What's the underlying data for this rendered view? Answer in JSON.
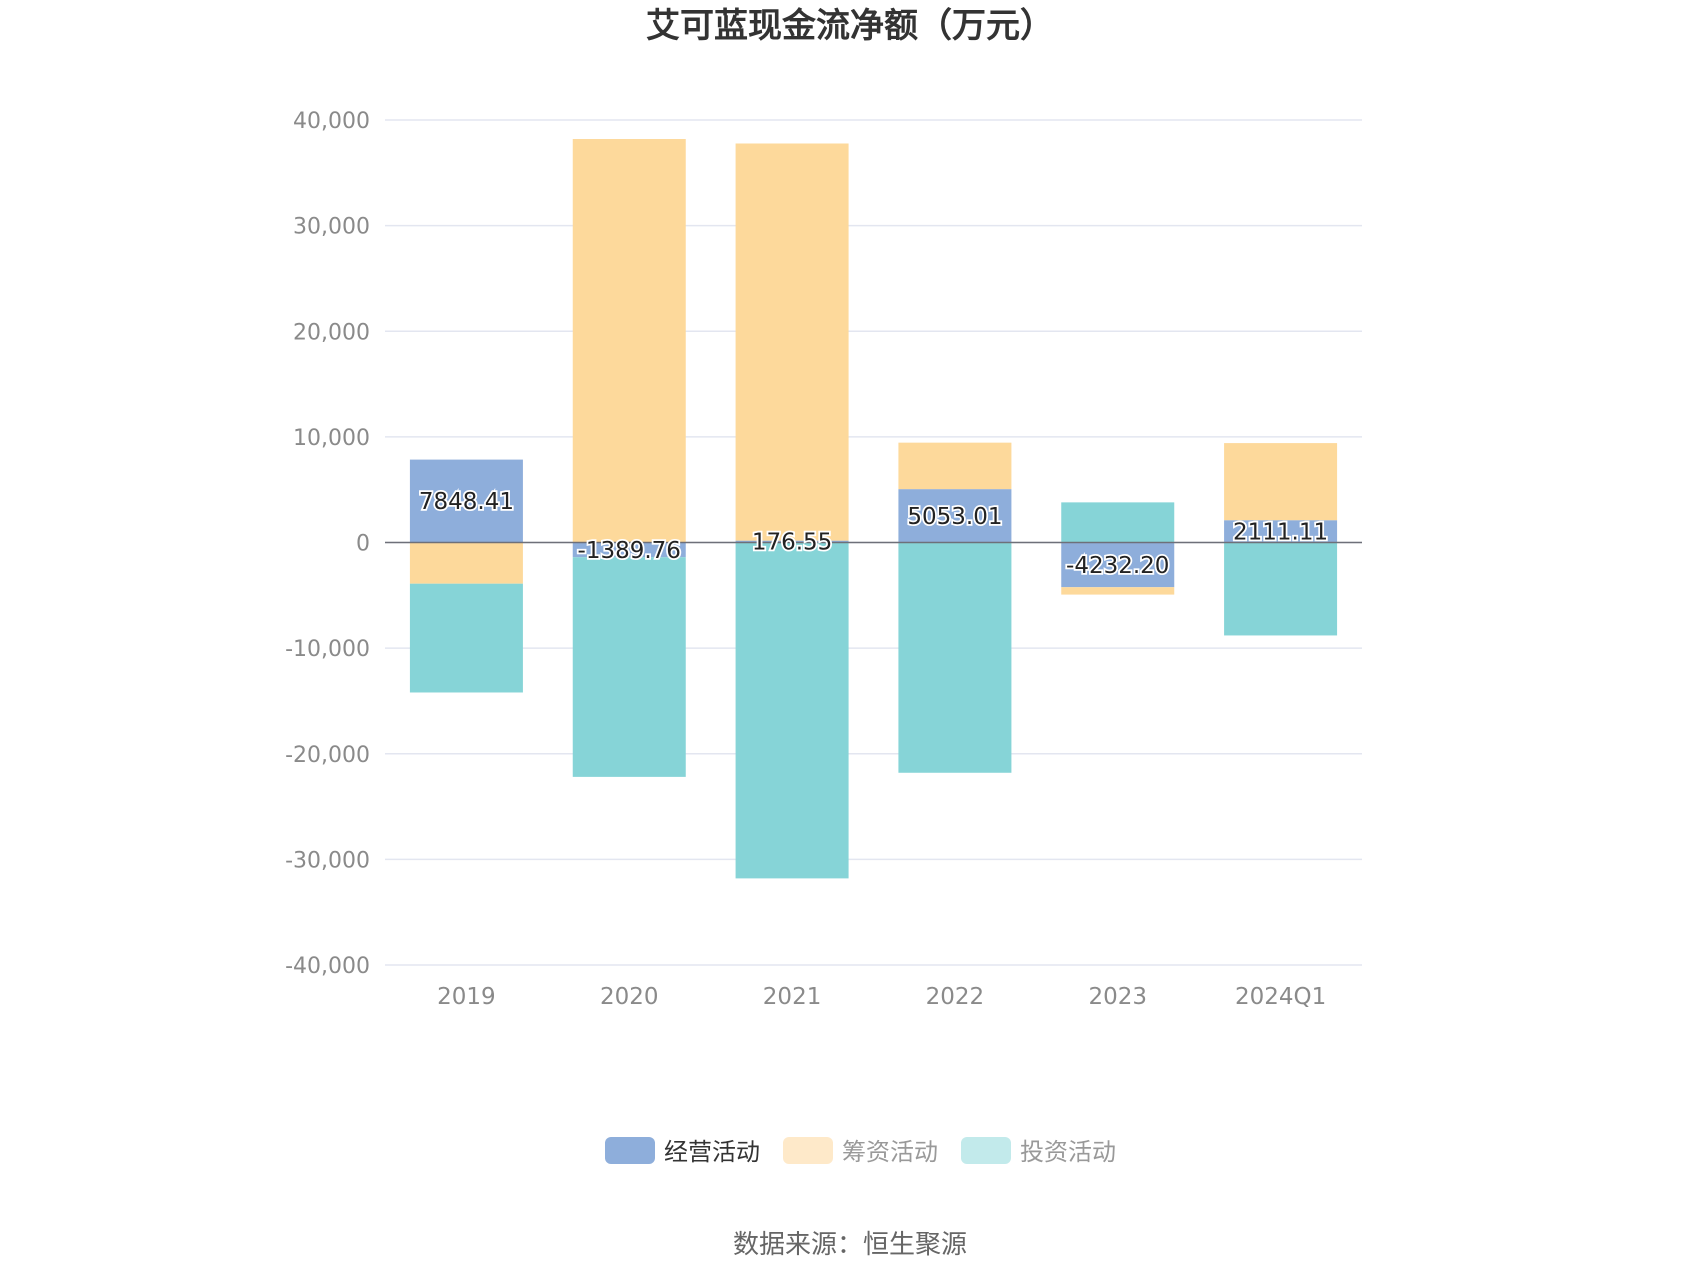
{
  "chart_data": {
    "type": "bar",
    "stacked": true,
    "title": "艾可蓝现金流净额（万元）",
    "source": "数据来源：恒生聚源",
    "categories": [
      "2019",
      "2020",
      "2021",
      "2022",
      "2023",
      "2024Q1"
    ],
    "y_ticks": [
      "40,000",
      "30,000",
      "20,000",
      "10,000",
      "0",
      "-10,000",
      "-20,000",
      "-30,000",
      "-40,000"
    ],
    "ylim": [
      -40000,
      40000
    ],
    "grid": true,
    "legend_position": "bottom",
    "series": [
      {
        "name": "经营活动",
        "color": "#8eaedb",
        "values": [
          7848.41,
          -1389.76,
          176.55,
          5053.01,
          -4232.2,
          2111.11
        ],
        "labels": [
          "7848.41",
          "-1389.76",
          "176.55",
          "5053.01",
          "-4232.20",
          "2111.11"
        ]
      },
      {
        "name": "筹资活动",
        "color": "#fdd99b",
        "legend_color": "#fee9c9",
        "values": [
          -3900,
          38200,
          37600,
          4400,
          -700,
          7300
        ]
      },
      {
        "name": "投资活动",
        "color": "#86d4d7",
        "legend_color": "#c2eaeb",
        "values": [
          -10300,
          -20800,
          -31800,
          -21800,
          3800,
          -8800
        ]
      }
    ]
  }
}
